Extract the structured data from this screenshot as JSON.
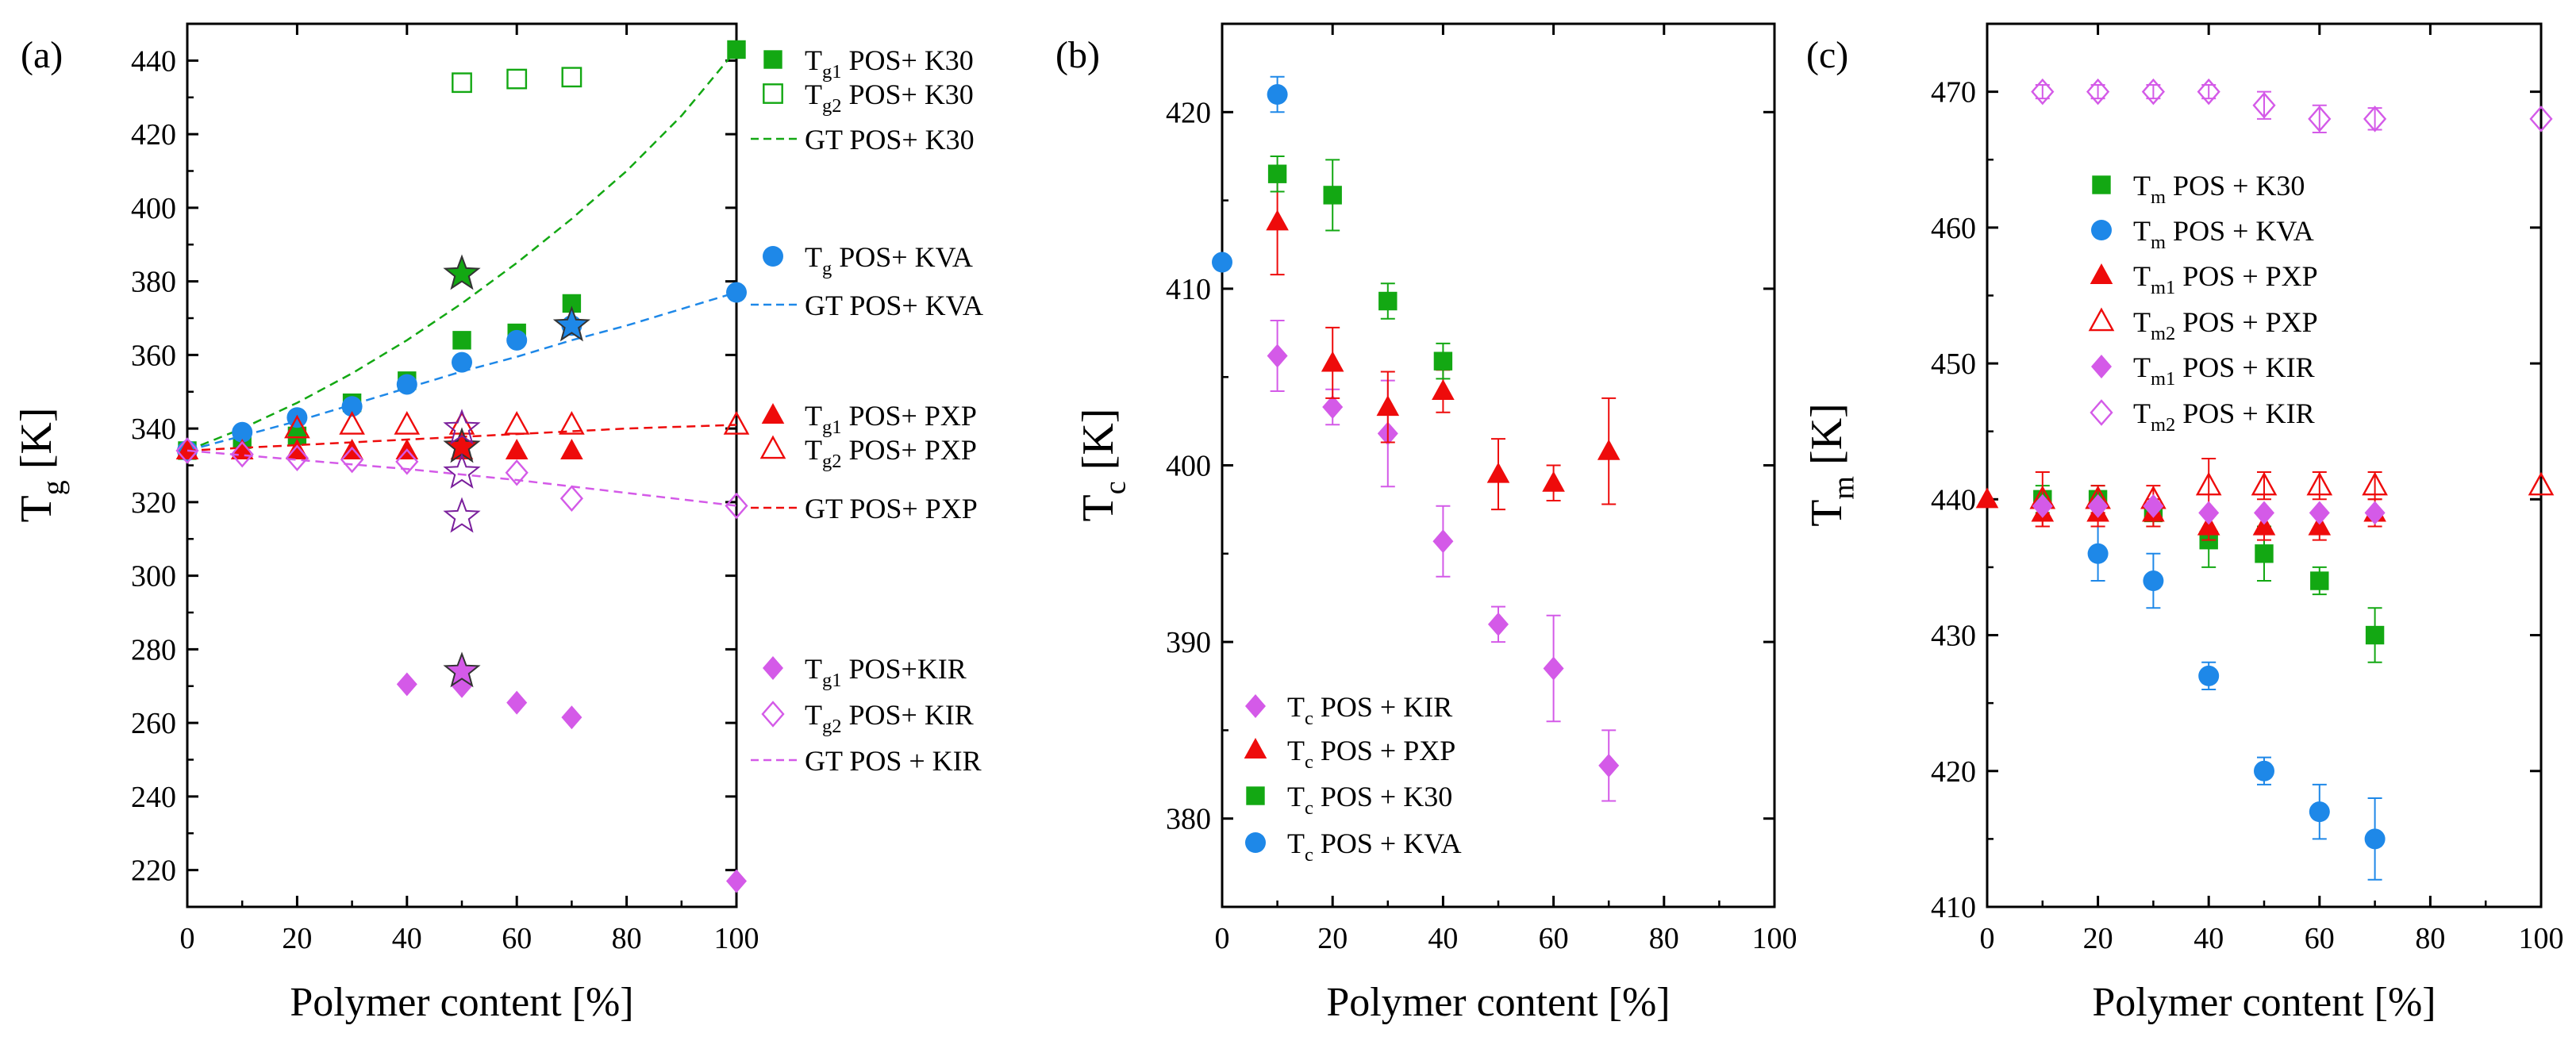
{
  "colors": {
    "green": "#13a813",
    "blue": "#1e88e8",
    "red": "#ee0b0b",
    "magenta": "#d45ae8",
    "purple": "#7a1f9c"
  },
  "chart_data": [
    {
      "panel_label": "(a)",
      "type": "scatter",
      "xlabel": "Polymer content [%]",
      "ylabel": {
        "main": "T",
        "sub": "g",
        "rest": " [K]"
      },
      "xlim": [
        0,
        100
      ],
      "ylim": [
        210,
        450
      ],
      "xticks": [
        0,
        20,
        40,
        60,
        80,
        100
      ],
      "yticks": [
        220,
        240,
        260,
        280,
        300,
        320,
        340,
        360,
        380,
        400,
        420,
        440
      ],
      "grid": false,
      "legend_position": "outside-right",
      "series": [
        {
          "name": {
            "main": "T",
            "sub": "g1",
            "rest": " POS+ K30"
          },
          "marker": "square",
          "fill": "filled",
          "color": "#13a813",
          "x": [
            0,
            10,
            20,
            30,
            40,
            50,
            60,
            70,
            100
          ],
          "y": [
            334,
            337,
            338,
            347,
            353,
            364,
            366,
            374,
            443
          ]
        },
        {
          "name": {
            "main": "T",
            "sub": "g2",
            "rest": " POS+ K30"
          },
          "marker": "square",
          "fill": "open",
          "color": "#13a813",
          "x": [
            50,
            60,
            70
          ],
          "y": [
            434,
            435,
            435.5
          ]
        },
        {
          "name": {
            "main": "",
            "sub": "",
            "rest": "GT POS+ K30"
          },
          "marker": "line",
          "dash": true,
          "color": "#13a813",
          "x": [
            0,
            10,
            20,
            30,
            40,
            50,
            60,
            70,
            80,
            90,
            100
          ],
          "y": [
            334,
            340,
            347,
            355,
            364,
            374,
            385,
            397,
            410,
            425,
            443
          ]
        },
        {
          "name": {
            "main": "T",
            "sub": "g",
            "rest": " POS+ KVA"
          },
          "marker": "circle",
          "fill": "filled",
          "color": "#1e88e8",
          "x": [
            0,
            10,
            20,
            30,
            40,
            50,
            60,
            70,
            100
          ],
          "y": [
            334,
            339,
            343,
            346,
            352,
            358,
            364,
            368,
            377
          ]
        },
        {
          "name": {
            "main": "",
            "sub": "",
            "rest": "GT POS+ KVA"
          },
          "marker": "line",
          "dash": true,
          "color": "#1e88e8",
          "x": [
            0,
            10,
            20,
            30,
            40,
            50,
            60,
            70,
            80,
            90,
            100
          ],
          "y": [
            334,
            338,
            342,
            346.5,
            351,
            355.5,
            359.5,
            364,
            368,
            372.5,
            377
          ]
        },
        {
          "name": {
            "main": "T",
            "sub": "g1",
            "rest": " POS+ PXP"
          },
          "marker": "triangle",
          "fill": "filled",
          "color": "#ee0b0b",
          "x": [
            0,
            10,
            20,
            30,
            40,
            50,
            60,
            70
          ],
          "y": [
            334,
            334,
            334,
            334,
            334,
            334,
            334,
            334
          ]
        },
        {
          "name": {
            "main": "T",
            "sub": "g2",
            "rest": " POS+ PXP"
          },
          "marker": "triangle",
          "fill": "open",
          "color": "#ee0b0b",
          "x": [
            20,
            30,
            40,
            50,
            60,
            70,
            100
          ],
          "y": [
            340,
            341,
            341,
            341,
            341,
            341,
            341
          ]
        },
        {
          "name": {
            "main": "",
            "sub": "",
            "rest": "GT POS+ PXP"
          },
          "marker": "line",
          "dash": true,
          "color": "#ee0b0b",
          "x": [
            0,
            20,
            40,
            60,
            80,
            100
          ],
          "y": [
            334,
            335.5,
            337,
            338.5,
            340,
            341
          ]
        },
        {
          "name": {
            "main": "T",
            "sub": "g1",
            "rest": " POS+KIR"
          },
          "marker": "diamond",
          "fill": "filled",
          "color": "#d45ae8",
          "x": [
            40,
            50,
            60,
            70,
            100
          ],
          "y": [
            270.5,
            270,
            265.5,
            261.5,
            217
          ]
        },
        {
          "name": {
            "main": "T",
            "sub": "g2",
            "rest": " POS+ KIR"
          },
          "marker": "diamond",
          "fill": "open",
          "color": "#d45ae8",
          "x": [
            0,
            10,
            20,
            30,
            40,
            60,
            70,
            100
          ],
          "y": [
            334,
            333,
            332,
            331.5,
            331,
            328,
            321,
            319
          ]
        },
        {
          "name": {
            "main": "",
            "sub": "",
            "rest": "GT POS + KIR"
          },
          "marker": "line",
          "dash": true,
          "color": "#d45ae8",
          "x": [
            0,
            20,
            40,
            60,
            80,
            100
          ],
          "y": [
            334,
            331.5,
            329,
            326,
            322.5,
            319
          ]
        }
      ],
      "stars": [
        {
          "x": 50,
          "y": 382,
          "color": "#13a813",
          "fill": "filled"
        },
        {
          "x": 70,
          "y": 368,
          "color": "#1e88e8",
          "fill": "filled"
        },
        {
          "x": 50,
          "y": 335,
          "color": "#ee0b0b",
          "fill": "filled"
        },
        {
          "x": 50,
          "y": 340,
          "color": "#ee0b0b",
          "fill": "open"
        },
        {
          "x": 50,
          "y": 328,
          "color": "#d45ae8",
          "fill": "open"
        },
        {
          "x": 50,
          "y": 316,
          "color": "#d45ae8",
          "fill": "open"
        },
        {
          "x": 50,
          "y": 274,
          "color": "#d45ae8",
          "fill": "filled"
        }
      ]
    },
    {
      "panel_label": "(b)",
      "type": "scatter",
      "xlabel": "Polymer content [%]",
      "ylabel": {
        "main": "T",
        "sub": "c",
        "rest": " [K]"
      },
      "xlim": [
        0,
        100
      ],
      "ylim": [
        375,
        425
      ],
      "xticks": [
        0,
        20,
        40,
        60,
        80,
        100
      ],
      "yticks": [
        380,
        390,
        400,
        410,
        420
      ],
      "grid": false,
      "legend_position": "bottom-left",
      "series": [
        {
          "name": {
            "main": "T",
            "sub": "c",
            "rest": " POS + KIR"
          },
          "marker": "diamond",
          "fill": "filled",
          "color": "#d45ae8",
          "x": [
            10,
            20,
            30,
            40,
            50,
            60,
            70
          ],
          "y": [
            406.2,
            403.3,
            401.8,
            395.7,
            391,
            388.5,
            383
          ],
          "err": [
            2,
            1,
            3,
            2,
            1,
            3,
            2
          ]
        },
        {
          "name": {
            "main": "T",
            "sub": "c",
            "rest": " POS + PXP"
          },
          "marker": "triangle",
          "fill": "filled",
          "color": "#ee0b0b",
          "x": [
            10,
            20,
            30,
            40,
            50,
            60,
            70
          ],
          "y": [
            413.8,
            405.8,
            403.3,
            404.2,
            399.5,
            399,
            400.8
          ],
          "err": [
            3,
            2,
            2,
            1.2,
            2,
            1,
            3
          ]
        },
        {
          "name": {
            "main": "T",
            "sub": "c",
            "rest": " POS + K30"
          },
          "marker": "square",
          "fill": "filled",
          "color": "#13a813",
          "x": [
            10,
            20,
            30,
            40
          ],
          "y": [
            416.5,
            415.3,
            409.3,
            405.9
          ],
          "err": [
            1,
            2,
            1,
            1
          ]
        },
        {
          "name": {
            "main": "T",
            "sub": "c",
            "rest": " POS + KVA"
          },
          "marker": "circle",
          "fill": "filled",
          "color": "#1e88e8",
          "x": [
            0,
            10
          ],
          "y": [
            411.5,
            421
          ],
          "err": [
            0,
            1
          ]
        }
      ]
    },
    {
      "panel_label": "(c)",
      "type": "scatter",
      "xlabel": "Polymer content [%]",
      "ylabel": {
        "main": "T",
        "sub": "m",
        "rest": " [K]"
      },
      "xlim": [
        0,
        100
      ],
      "ylim": [
        410,
        475
      ],
      "xticks": [
        0,
        20,
        40,
        60,
        80,
        100
      ],
      "yticks": [
        410,
        420,
        430,
        440,
        450,
        460,
        470
      ],
      "grid": false,
      "legend_position": "top-left",
      "series": [
        {
          "name": {
            "main": "T",
            "sub": "m",
            "rest": " POS + K30"
          },
          "marker": "square",
          "fill": "filled",
          "color": "#13a813",
          "x": [
            10,
            20,
            30,
            40,
            50,
            60,
            70
          ],
          "y": [
            440,
            440,
            439,
            437,
            436,
            434,
            430
          ],
          "err": [
            1,
            1,
            1,
            2,
            2,
            1,
            2
          ]
        },
        {
          "name": {
            "main": "T",
            "sub": "m",
            "rest": " POS + KVA"
          },
          "marker": "circle",
          "fill": "filled",
          "color": "#1e88e8",
          "x": [
            20,
            30,
            40,
            50,
            60,
            70
          ],
          "y": [
            436,
            434,
            427,
            420,
            417,
            415
          ],
          "err": [
            2,
            2,
            1,
            1,
            2,
            3
          ]
        },
        {
          "name": {
            "main": "T",
            "sub": "m1",
            "rest": " POS + PXP"
          },
          "marker": "triangle",
          "fill": "filled",
          "color": "#ee0b0b",
          "x": [
            0,
            10,
            20,
            30,
            40,
            50,
            60,
            70
          ],
          "y": [
            440,
            439,
            439,
            439,
            438,
            438,
            438,
            439
          ],
          "err": [
            0,
            1,
            1,
            1,
            1,
            1,
            1,
            1
          ]
        },
        {
          "name": {
            "main": "T",
            "sub": "m2",
            "rest": " POS + PXP"
          },
          "marker": "triangle",
          "fill": "open",
          "color": "#ee0b0b",
          "x": [
            10,
            20,
            30,
            40,
            50,
            60,
            70,
            100
          ],
          "y": [
            440,
            440,
            440,
            441,
            441,
            441,
            441,
            441
          ],
          "err": [
            2,
            1,
            1,
            2,
            1,
            1,
            1,
            0
          ]
        },
        {
          "name": {
            "main": "T",
            "sub": "m1",
            "rest": " POS + KIR"
          },
          "marker": "diamond",
          "fill": "filled",
          "color": "#d45ae8",
          "x": [
            10,
            20,
            30,
            40,
            50,
            60,
            70
          ],
          "y": [
            439.5,
            439.5,
            439.5,
            439,
            439,
            439,
            439
          ],
          "err": [
            0,
            0,
            0,
            0,
            0,
            0,
            0
          ]
        },
        {
          "name": {
            "main": "T",
            "sub": "m2",
            "rest": " POS + KIR"
          },
          "marker": "diamond",
          "fill": "open",
          "color": "#d45ae8",
          "x": [
            10,
            20,
            30,
            40,
            50,
            60,
            70,
            100
          ],
          "y": [
            470,
            470,
            470,
            470,
            469,
            468,
            468,
            468
          ],
          "err": [
            0.5,
            0.5,
            0.5,
            0.5,
            1,
            1,
            0.8,
            0
          ]
        }
      ]
    }
  ]
}
